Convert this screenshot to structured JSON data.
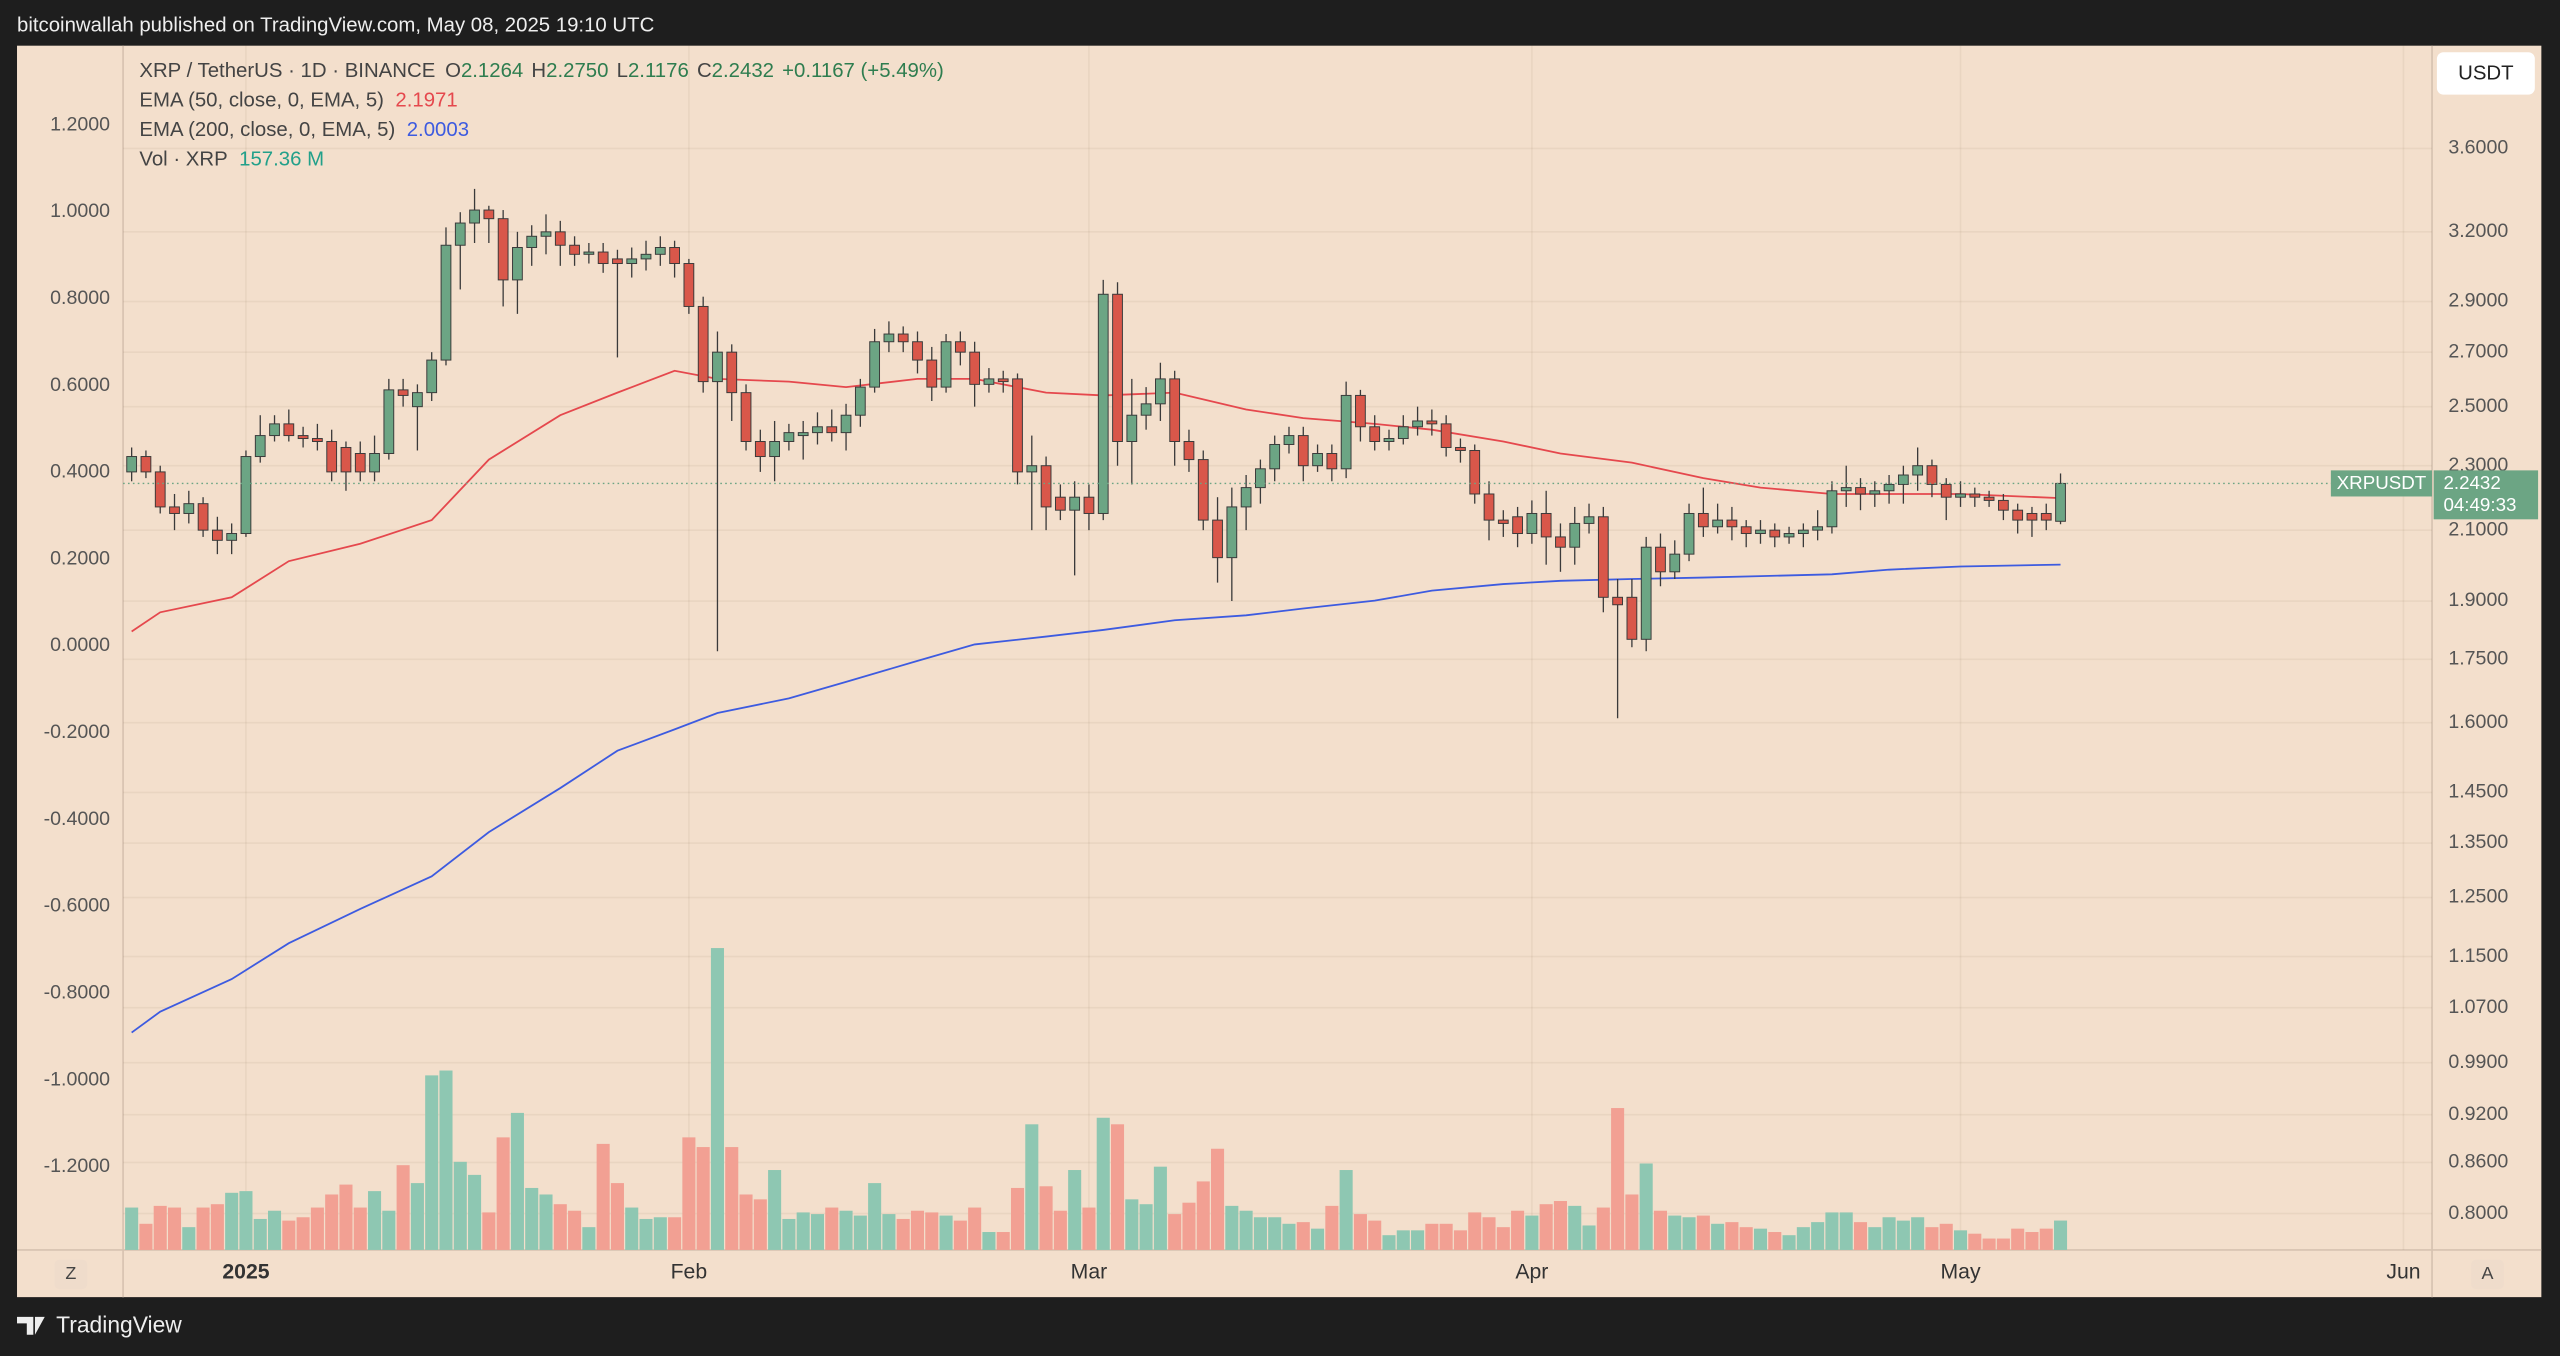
{
  "header": {
    "publisher_line": "bitcoinwallah published on TradingView.com, May 08, 2025 19:10 UTC"
  },
  "footer": {
    "brand": "TradingView"
  },
  "chart_data": {
    "type": "candlestick",
    "symbol_line": "XRP / TetherUS · 1D · BINANCE",
    "ohlc_legend": {
      "open_label": "O",
      "open": "2.1264",
      "high_label": "H",
      "high": "2.2750",
      "low_label": "L",
      "low": "2.1176",
      "close_label": "C",
      "close": "2.2432",
      "change": "+0.1167 (+5.49%)"
    },
    "open": [
      2.28,
      2.33,
      2.28,
      2.17,
      2.15,
      2.18,
      2.1,
      2.07,
      2.09,
      2.33,
      2.4,
      2.44,
      2.4,
      2.39,
      2.38,
      2.36,
      2.34,
      2.28,
      2.34,
      2.56,
      2.5,
      2.55,
      2.67,
      3.14,
      3.24,
      3.3,
      3.26,
      2.99,
      3.13,
      3.18,
      3.2,
      3.14,
      3.1,
      3.11,
      3.08,
      3.06,
      3.08,
      3.1,
      3.13,
      3.06,
      2.88,
      2.59,
      2.7,
      2.55,
      2.38,
      2.33,
      2.38,
      2.4,
      2.41,
      2.43,
      2.41,
      2.47,
      2.57,
      2.74,
      2.77,
      2.74,
      2.67,
      2.57,
      2.74,
      2.7,
      2.58,
      2.6,
      2.6,
      2.28,
      2.3,
      2.2,
      2.16,
      2.2,
      2.15,
      2.93,
      2.38,
      2.47,
      2.51,
      2.6,
      2.38,
      2.32,
      2.13,
      2.02,
      2.17,
      2.23,
      2.29,
      2.37,
      2.4,
      2.3,
      2.34,
      2.29,
      2.54,
      2.43,
      2.38,
      2.39,
      2.43,
      2.45,
      2.44,
      2.36,
      2.35,
      2.21,
      2.13,
      2.14,
      2.09,
      2.15,
      2.08,
      2.05,
      2.12,
      2.14,
      1.91,
      1.91,
      1.8,
      2.05,
      1.98,
      2.03,
      2.15,
      2.11,
      2.13,
      2.11,
      2.09,
      2.1,
      2.08,
      2.09,
      2.1,
      2.11,
      2.22,
      2.23,
      2.21,
      2.22,
      2.24,
      2.27,
      2.3,
      2.24,
      2.2,
      2.21,
      2.2,
      2.19,
      2.16,
      2.15,
      2.15,
      2.1264
    ],
    "high": [
      2.36,
      2.35,
      2.3,
      2.21,
      2.22,
      2.2,
      2.14,
      2.12,
      2.35,
      2.47,
      2.47,
      2.49,
      2.43,
      2.44,
      2.42,
      2.38,
      2.38,
      2.4,
      2.6,
      2.6,
      2.58,
      2.7,
      3.22,
      3.29,
      3.4,
      3.32,
      3.3,
      3.2,
      3.23,
      3.28,
      3.25,
      3.18,
      3.15,
      3.15,
      3.12,
      3.13,
      3.16,
      3.18,
      3.16,
      3.08,
      2.92,
      2.78,
      2.73,
      2.58,
      2.42,
      2.45,
      2.44,
      2.45,
      2.48,
      2.49,
      2.51,
      2.6,
      2.79,
      2.82,
      2.8,
      2.78,
      2.72,
      2.77,
      2.78,
      2.74,
      2.64,
      2.63,
      2.62,
      2.4,
      2.33,
      2.24,
      2.25,
      2.24,
      2.99,
      2.98,
      2.6,
      2.57,
      2.66,
      2.63,
      2.42,
      2.35,
      2.2,
      2.23,
      2.27,
      2.32,
      2.4,
      2.43,
      2.43,
      2.37,
      2.37,
      2.59,
      2.56,
      2.47,
      2.42,
      2.47,
      2.5,
      2.49,
      2.47,
      2.39,
      2.37,
      2.25,
      2.16,
      2.17,
      2.19,
      2.22,
      2.12,
      2.17,
      2.18,
      2.17,
      1.96,
      1.96,
      2.08,
      2.09,
      2.07,
      2.18,
      2.23,
      2.18,
      2.17,
      2.13,
      2.13,
      2.12,
      2.11,
      2.12,
      2.16,
      2.25,
      2.3,
      2.26,
      2.25,
      2.27,
      2.3,
      2.36,
      2.32,
      2.26,
      2.25,
      2.23,
      2.22,
      2.21,
      2.18,
      2.17,
      2.18,
      2.275
    ],
    "low": [
      2.25,
      2.26,
      2.15,
      2.1,
      2.12,
      2.08,
      2.03,
      2.03,
      2.08,
      2.31,
      2.38,
      2.38,
      2.36,
      2.35,
      2.25,
      2.22,
      2.25,
      2.25,
      2.32,
      2.5,
      2.35,
      2.52,
      2.65,
      2.95,
      3.15,
      3.15,
      2.88,
      2.85,
      3.05,
      3.1,
      3.05,
      3.05,
      3.06,
      3.02,
      2.68,
      3.0,
      3.03,
      3.05,
      3.0,
      2.85,
      2.55,
      1.77,
      2.45,
      2.35,
      2.28,
      2.25,
      2.35,
      2.32,
      2.37,
      2.38,
      2.35,
      2.43,
      2.55,
      2.7,
      2.7,
      2.62,
      2.52,
      2.55,
      2.65,
      2.5,
      2.55,
      2.55,
      2.24,
      2.1,
      2.1,
      2.13,
      1.97,
      2.1,
      2.13,
      2.3,
      2.24,
      2.42,
      2.45,
      2.3,
      2.28,
      2.1,
      1.95,
      1.9,
      2.1,
      2.18,
      2.25,
      2.34,
      2.25,
      2.28,
      2.25,
      2.26,
      2.38,
      2.35,
      2.35,
      2.37,
      2.4,
      2.4,
      2.33,
      2.31,
      2.18,
      2.07,
      2.08,
      2.05,
      2.06,
      2.0,
      1.98,
      2.0,
      2.09,
      1.87,
      1.61,
      1.78,
      1.77,
      1.94,
      1.96,
      2.01,
      2.08,
      2.09,
      2.07,
      2.05,
      2.06,
      2.05,
      2.06,
      2.05,
      2.07,
      2.09,
      2.17,
      2.16,
      2.17,
      2.18,
      2.18,
      2.22,
      2.2,
      2.13,
      2.17,
      2.17,
      2.17,
      2.13,
      2.09,
      2.08,
      2.1,
      2.1176
    ],
    "close": [
      2.33,
      2.28,
      2.17,
      2.15,
      2.18,
      2.1,
      2.07,
      2.09,
      2.33,
      2.4,
      2.44,
      2.4,
      2.39,
      2.38,
      2.28,
      2.28,
      2.28,
      2.34,
      2.56,
      2.54,
      2.55,
      2.67,
      3.14,
      3.24,
      3.3,
      3.26,
      2.99,
      3.13,
      3.18,
      3.2,
      3.14,
      3.1,
      3.11,
      3.06,
      3.06,
      3.08,
      3.1,
      3.13,
      3.06,
      2.88,
      2.59,
      2.7,
      2.55,
      2.38,
      2.33,
      2.38,
      2.41,
      2.41,
      2.43,
      2.41,
      2.47,
      2.57,
      2.74,
      2.77,
      2.74,
      2.67,
      2.57,
      2.74,
      2.7,
      2.58,
      2.6,
      2.59,
      2.28,
      2.3,
      2.17,
      2.16,
      2.2,
      2.15,
      2.93,
      2.38,
      2.47,
      2.51,
      2.6,
      2.38,
      2.32,
      2.13,
      2.02,
      2.17,
      2.23,
      2.29,
      2.37,
      2.4,
      2.3,
      2.34,
      2.29,
      2.54,
      2.43,
      2.38,
      2.39,
      2.43,
      2.45,
      2.44,
      2.36,
      2.35,
      2.21,
      2.13,
      2.12,
      2.09,
      2.15,
      2.08,
      2.05,
      2.12,
      2.14,
      1.91,
      1.89,
      1.8,
      2.05,
      1.98,
      2.03,
      2.15,
      2.11,
      2.13,
      2.11,
      2.09,
      2.1,
      2.08,
      2.09,
      2.1,
      2.11,
      2.22,
      2.23,
      2.21,
      2.22,
      2.24,
      2.27,
      2.3,
      2.24,
      2.2,
      2.21,
      2.2,
      2.19,
      2.16,
      2.13,
      2.13,
      2.13,
      2.2432
    ],
    "volume": [
      227,
      140,
      236,
      227,
      122,
      227,
      245,
      306,
      315,
      166,
      210,
      157,
      175,
      227,
      297,
      350,
      227,
      315,
      210,
      454,
      358,
      935,
      961,
      472,
      402,
      201,
      603,
      734,
      332,
      297,
      245,
      210,
      122,
      568,
      358,
      227,
      166,
      175,
      175,
      603,
      551,
      1617,
      551,
      297,
      271,
      428,
      166,
      201,
      192,
      227,
      210,
      184,
      358,
      192,
      166,
      210,
      201,
      184,
      157,
      227,
      96,
      96,
      332,
      673,
      341,
      210,
      428,
      227,
      708,
      673,
      271,
      245,
      446,
      192,
      253,
      367,
      542,
      236,
      210,
      175,
      175,
      140,
      149,
      114,
      236,
      428,
      192,
      157,
      79,
      105,
      105,
      140,
      140,
      105,
      201,
      175,
      122,
      210,
      184,
      245,
      262,
      236,
      131,
      227,
      760,
      297,
      463,
      210,
      184,
      175,
      184,
      140,
      149,
      122,
      114,
      96,
      79,
      122,
      149,
      201,
      201,
      149,
      122,
      175,
      157,
      175,
      122,
      140,
      105,
      87,
      61,
      61,
      114,
      96,
      114,
      157.36
    ],
    "volume_legend": {
      "name": "Vol · XRP",
      "value_label": "157.36 M",
      "color": "#22a08a"
    },
    "up_color": "#6ca584",
    "down_color": "#d9574a",
    "wick_color": "#3a3a3a",
    "volume_up_color": "#8ec7b2",
    "volume_down_color": "#f2a093",
    "overlays": [
      {
        "name": "EMA (50, close, 0, EMA, 5)",
        "color": "#e5484d",
        "value_label": "2.1971",
        "x": [
          0,
          2,
          7,
          11,
          16,
          21,
          25,
          30,
          34,
          38,
          41,
          46,
          50,
          55,
          59,
          64,
          68,
          73,
          78,
          82,
          87,
          91,
          96,
          100,
          105,
          110,
          114,
          119,
          123,
          128,
          135
        ],
        "values": [
          1.82,
          1.87,
          1.91,
          2.01,
          2.06,
          2.13,
          2.32,
          2.47,
          2.55,
          2.63,
          2.6,
          2.59,
          2.57,
          2.6,
          2.6,
          2.55,
          2.54,
          2.55,
          2.49,
          2.46,
          2.44,
          2.42,
          2.38,
          2.34,
          2.31,
          2.26,
          2.23,
          2.21,
          2.21,
          2.21,
          2.1971
        ]
      },
      {
        "name": "EMA (200, close, 0, EMA, 5)",
        "color": "#3d5be0",
        "value_label": "2.0003",
        "x": [
          0,
          2,
          7,
          11,
          16,
          21,
          25,
          30,
          34,
          38,
          41,
          46,
          50,
          55,
          59,
          64,
          68,
          73,
          78,
          82,
          87,
          91,
          96,
          100,
          105,
          110,
          114,
          119,
          123,
          128,
          135
        ],
        "values": [
          1.033,
          1.064,
          1.114,
          1.172,
          1.23,
          1.288,
          1.371,
          1.459,
          1.538,
          1.585,
          1.622,
          1.656,
          1.695,
          1.746,
          1.787,
          1.807,
          1.824,
          1.849,
          1.862,
          1.88,
          1.901,
          1.928,
          1.946,
          1.955,
          1.96,
          1.964,
          1.968,
          1.973,
          1.986,
          1.995,
          2.0003
        ]
      }
    ],
    "log_scale": true,
    "y_unit": "USDT",
    "ylim": [
      0.76,
      4.162
    ],
    "yticks": [
      {
        "value": 3.6,
        "label": "3.6000"
      },
      {
        "value": 3.2,
        "label": "3.2000"
      },
      {
        "value": 2.9,
        "label": "2.9000"
      },
      {
        "value": 2.7,
        "label": "2.7000"
      },
      {
        "value": 2.5,
        "label": "2.5000"
      },
      {
        "value": 2.3,
        "label": "2.3000"
      },
      {
        "value": 2.1,
        "label": "2.1000"
      },
      {
        "value": 1.9,
        "label": "1.9000"
      },
      {
        "value": 1.75,
        "label": "1.7500"
      },
      {
        "value": 1.6,
        "label": "1.6000"
      },
      {
        "value": 1.45,
        "label": "1.4500"
      },
      {
        "value": 1.35,
        "label": "1.3500"
      },
      {
        "value": 1.25,
        "label": "1.2500"
      },
      {
        "value": 1.15,
        "label": "1.1500"
      },
      {
        "value": 1.07,
        "label": "1.0700"
      },
      {
        "value": 0.99,
        "label": "0.9900"
      },
      {
        "value": 0.92,
        "label": "0.9200"
      },
      {
        "value": 0.86,
        "label": "0.8600"
      },
      {
        "value": 0.8,
        "label": "0.8000"
      }
    ],
    "y2lim": [
      -1.391,
      1.383
    ],
    "y2ticks": [
      {
        "value": 1.2,
        "label": "1.2000"
      },
      {
        "value": 1,
        "label": "1.0000"
      },
      {
        "value": 0.8,
        "label": "0.8000"
      },
      {
        "value": 0.6,
        "label": "0.6000"
      },
      {
        "value": 0.4,
        "label": "0.4000"
      },
      {
        "value": 0.2,
        "label": "0.2000"
      },
      {
        "value": 0,
        "label": "0.0000"
      },
      {
        "value": -0.2,
        "label": "-0.2000"
      },
      {
        "value": -0.4,
        "label": "-0.4000"
      },
      {
        "value": -0.6,
        "label": "-0.6000"
      },
      {
        "value": -0.8,
        "label": "-0.8000"
      },
      {
        "value": -1,
        "label": "-1.0000"
      },
      {
        "value": -1.2,
        "label": "-1.2000"
      }
    ],
    "xlim": [
      -0.6,
      161
    ],
    "xticks": [
      {
        "value": 8,
        "label": "2025"
      },
      {
        "value": 39,
        "label": "Feb"
      },
      {
        "value": 67,
        "label": "Mar"
      },
      {
        "value": 98,
        "label": "Apr"
      },
      {
        "value": 128,
        "label": "May"
      },
      {
        "value": 159,
        "label": "Jun"
      }
    ],
    "grid": true,
    "price_tag": {
      "symbol": "XRPUSDT",
      "price": "2.2432",
      "countdown": "04:49:33"
    },
    "axis_buttons": {
      "left": "Z",
      "right": "A"
    }
  }
}
